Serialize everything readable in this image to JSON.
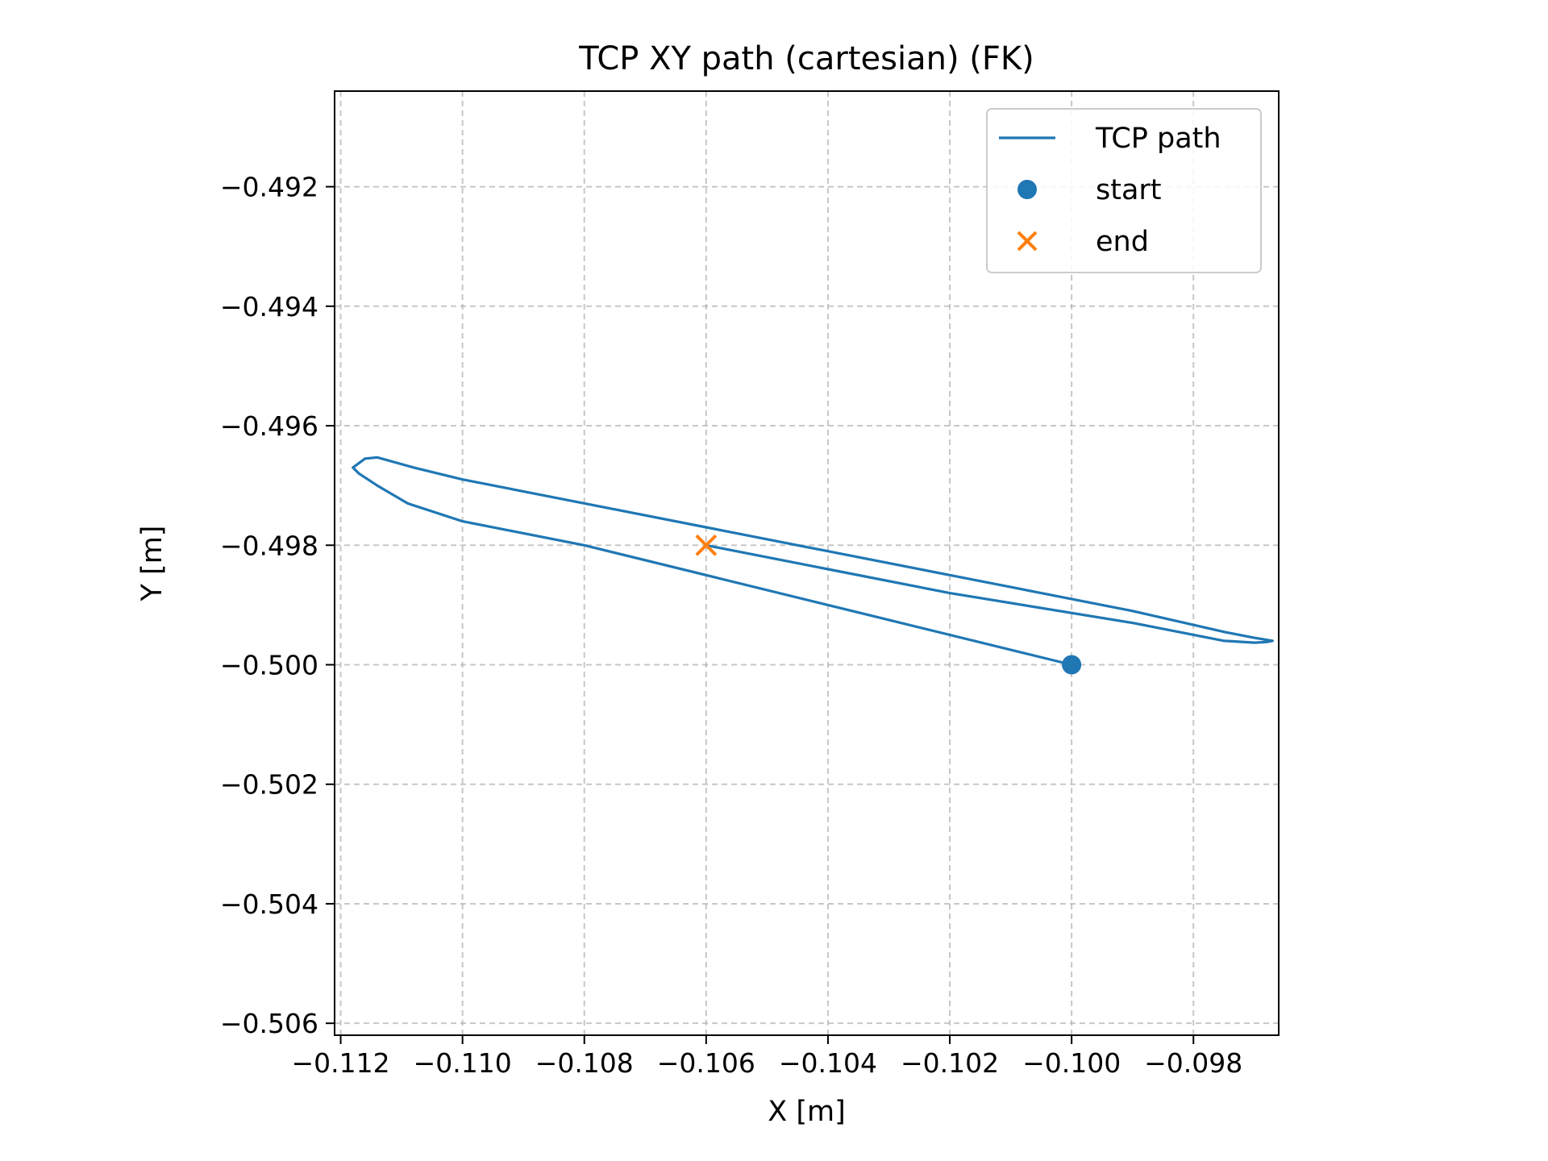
{
  "chart_data": {
    "type": "line",
    "title": "TCP XY path (cartesian) (FK)",
    "xlabel": "X [m]",
    "ylabel": "Y [m]",
    "xlim": [
      -0.1121,
      -0.0966
    ],
    "ylim": [
      -0.5062,
      -0.4904
    ],
    "xticks": [
      -0.112,
      -0.11,
      -0.108,
      -0.106,
      -0.104,
      -0.102,
      -0.1,
      -0.098
    ],
    "xtick_labels": [
      "−0.112",
      "−0.110",
      "−0.108",
      "−0.106",
      "−0.104",
      "−0.102",
      "−0.100",
      "−0.098"
    ],
    "yticks": [
      -0.492,
      -0.494,
      -0.496,
      -0.498,
      -0.5,
      -0.502,
      -0.504,
      -0.506
    ],
    "ytick_labels": [
      "−0.492",
      "−0.494",
      "−0.496",
      "−0.498",
      "−0.500",
      "−0.502",
      "−0.504",
      "−0.506"
    ],
    "grid": true,
    "legend_position": "top-right",
    "series": [
      {
        "name": "TCP path",
        "color": "#1f77b4",
        "points": [
          [
            -0.1,
            -0.5
          ],
          [
            -0.104,
            -0.499
          ],
          [
            -0.108,
            -0.498
          ],
          [
            -0.11,
            -0.4976
          ],
          [
            -0.1109,
            -0.4973
          ],
          [
            -0.1114,
            -0.497
          ],
          [
            -0.1117,
            -0.4968
          ],
          [
            -0.1118,
            -0.4967
          ],
          [
            -0.1116,
            -0.49655
          ],
          [
            -0.1114,
            -0.49653
          ],
          [
            -0.1108,
            -0.4967
          ],
          [
            -0.11,
            -0.4969
          ],
          [
            -0.106,
            -0.4977
          ],
          [
            -0.102,
            -0.4985
          ],
          [
            -0.099,
            -0.4991
          ],
          [
            -0.0975,
            -0.49945
          ],
          [
            -0.097,
            -0.49955
          ],
          [
            -0.0967,
            -0.4996
          ],
          [
            -0.0968,
            -0.49962
          ],
          [
            -0.097,
            -0.49963
          ],
          [
            -0.0975,
            -0.4996
          ],
          [
            -0.099,
            -0.4993
          ],
          [
            -0.102,
            -0.4988
          ],
          [
            -0.106,
            -0.498
          ]
        ]
      }
    ],
    "markers": [
      {
        "name": "start",
        "type": "dot",
        "color": "#1f77b4",
        "x": -0.1,
        "y": -0.5
      },
      {
        "name": "end",
        "type": "x",
        "color": "#ff7f0e",
        "x": -0.106,
        "y": -0.498
      }
    ]
  }
}
